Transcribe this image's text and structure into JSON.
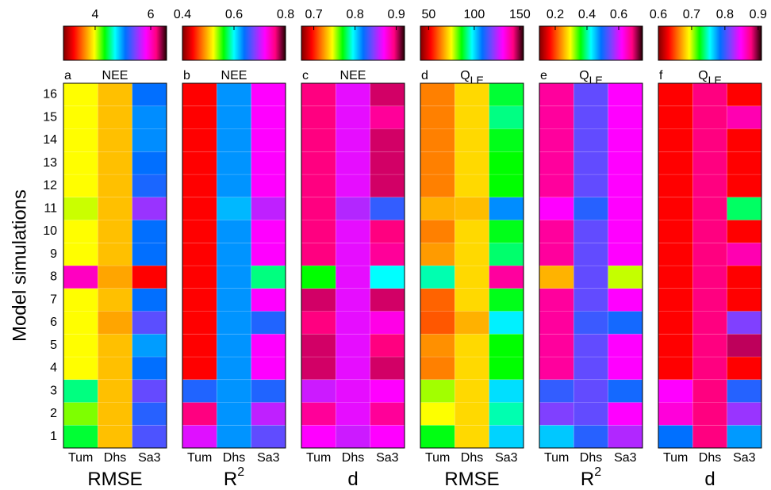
{
  "colormap": [
    "#800000",
    "#ff0000",
    "#ff8000",
    "#ffff00",
    "#00ff00",
    "#00ffff",
    "#0070ff",
    "#8040ff",
    "#ff00ff",
    "#ff0080",
    "#200000"
  ],
  "chart_data": [
    {
      "type": "heatmap",
      "panel_label": "a",
      "title": "NEE",
      "x_label": "RMSE",
      "y_label": "Model simulations",
      "columns": [
        "Tum",
        "Dhs",
        "Sa3"
      ],
      "rows": [
        1,
        2,
        3,
        4,
        5,
        6,
        7,
        8,
        9,
        10,
        11,
        12,
        13,
        14,
        15,
        16
      ],
      "clim": [
        2.86,
        6.57
      ],
      "cticks": [
        4,
        6
      ],
      "values": [
        [
          4.42,
          3.79,
          5.31
        ],
        [
          4.16,
          3.79,
          5.2
        ],
        [
          4.53,
          3.79,
          5.38
        ],
        [
          3.97,
          3.79,
          5.09
        ],
        [
          3.97,
          3.79,
          4.97
        ],
        [
          3.97,
          3.71,
          5.35
        ],
        [
          3.97,
          3.79,
          5.09
        ],
        [
          6.01,
          3.71,
          3.23
        ],
        [
          3.97,
          3.79,
          5.09
        ],
        [
          3.97,
          3.79,
          5.09
        ],
        [
          4.05,
          3.79,
          5.53
        ],
        [
          3.97,
          3.79,
          5.16
        ],
        [
          3.97,
          3.79,
          5.09
        ],
        [
          3.97,
          3.79,
          5.01
        ],
        [
          3.97,
          3.79,
          5.01
        ],
        [
          3.97,
          3.79,
          5.09
        ]
      ]
    },
    {
      "type": "heatmap",
      "panel_label": "b",
      "title": "NEE",
      "x_label": "R",
      "x_label_sup": "2",
      "columns": [
        "Tum",
        "Dhs",
        "Sa3"
      ],
      "clim": [
        0.4,
        0.8
      ],
      "cticks": [
        0.4,
        0.6,
        0.8
      ],
      "values": [
        [
          0.71,
          0.63,
          0.67
        ],
        [
          0.76,
          0.63,
          0.7
        ],
        [
          0.65,
          0.63,
          0.65
        ],
        [
          0.44,
          0.63,
          0.72
        ],
        [
          0.44,
          0.63,
          0.72
        ],
        [
          0.44,
          0.63,
          0.65
        ],
        [
          0.44,
          0.63,
          0.72
        ],
        [
          0.44,
          0.63,
          0.58
        ],
        [
          0.44,
          0.63,
          0.72
        ],
        [
          0.44,
          0.63,
          0.72
        ],
        [
          0.44,
          0.62,
          0.7
        ],
        [
          0.44,
          0.63,
          0.72
        ],
        [
          0.44,
          0.63,
          0.72
        ],
        [
          0.44,
          0.63,
          0.72
        ],
        [
          0.44,
          0.63,
          0.72
        ],
        [
          0.44,
          0.63,
          0.72
        ]
      ]
    },
    {
      "type": "heatmap",
      "panel_label": "c",
      "title": "NEE",
      "x_label": "d",
      "columns": [
        "Tum",
        "Dhs",
        "Sa3"
      ],
      "clim": [
        0.67,
        0.92
      ],
      "cticks": [
        0.7,
        0.8,
        0.9
      ],
      "values": [
        [
          0.87,
          0.86,
          0.87
        ],
        [
          0.89,
          0.865,
          0.89
        ],
        [
          0.86,
          0.865,
          0.87
        ],
        [
          0.9,
          0.865,
          0.9
        ],
        [
          0.9,
          0.865,
          0.895
        ],
        [
          0.895,
          0.865,
          0.875
        ],
        [
          0.9,
          0.865,
          0.9
        ],
        [
          0.77,
          0.865,
          0.795
        ],
        [
          0.895,
          0.865,
          0.89
        ],
        [
          0.895,
          0.865,
          0.895
        ],
        [
          0.895,
          0.855,
          0.83
        ],
        [
          0.895,
          0.865,
          0.9
        ],
        [
          0.895,
          0.865,
          0.9
        ],
        [
          0.895,
          0.865,
          0.9
        ],
        [
          0.895,
          0.865,
          0.89
        ],
        [
          0.895,
          0.865,
          0.9
        ]
      ]
    },
    {
      "type": "heatmap",
      "panel_label": "d",
      "title": "Q",
      "title_sub": "LE",
      "x_label": "RMSE",
      "columns": [
        "Tum",
        "Dhs",
        "Sa3"
      ],
      "clim": [
        41,
        154
      ],
      "cticks": [
        50,
        100,
        150
      ],
      "values": [
        [
          87,
          71.5,
          101
        ],
        [
          75,
          71.5,
          94
        ],
        [
          79,
          71.5,
          100
        ],
        [
          63.6,
          71.5,
          86.2
        ],
        [
          65,
          71.5,
          86.2
        ],
        [
          60,
          68,
          98.6
        ],
        [
          61,
          71.5,
          87.3
        ],
        [
          94,
          71.5,
          140
        ],
        [
          66,
          71.5,
          91
        ],
        [
          63.6,
          71.5,
          87.3
        ],
        [
          68,
          69,
          106.5
        ],
        [
          63.6,
          71.5,
          86.2
        ],
        [
          63.6,
          71.5,
          86.2
        ],
        [
          63.6,
          71.5,
          87.3
        ],
        [
          63.6,
          71.5,
          92
        ],
        [
          63.6,
          71.5,
          88.5
        ]
      ]
    },
    {
      "type": "heatmap",
      "panel_label": "e",
      "title": "Q",
      "title_sub": "LE",
      "x_label": "R",
      "x_label_sup": "2",
      "columns": [
        "Tum",
        "Dhs",
        "Sa3"
      ],
      "clim": [
        0.1,
        0.75
      ],
      "cticks": [
        0.2,
        0.4,
        0.6
      ],
      "values": [
        [
          0.45,
          0.51,
          0.58
        ],
        [
          0.555,
          0.54,
          0.62
        ],
        [
          0.516,
          0.54,
          0.5
        ],
        [
          0.67,
          0.54,
          0.62
        ],
        [
          0.67,
          0.54,
          0.62
        ],
        [
          0.67,
          0.52,
          0.5
        ],
        [
          0.67,
          0.54,
          0.62
        ],
        [
          0.256,
          0.54,
          0.31
        ],
        [
          0.67,
          0.54,
          0.62
        ],
        [
          0.67,
          0.54,
          0.62
        ],
        [
          0.62,
          0.51,
          0.62
        ],
        [
          0.67,
          0.54,
          0.62
        ],
        [
          0.67,
          0.54,
          0.62
        ],
        [
          0.67,
          0.54,
          0.62
        ],
        [
          0.67,
          0.54,
          0.62
        ],
        [
          0.67,
          0.54,
          0.62
        ]
      ]
    },
    {
      "type": "heatmap",
      "panel_label": "f",
      "title": "Q",
      "title_sub": "LE",
      "x_label": "d",
      "columns": [
        "Tum",
        "Dhs",
        "Sa3"
      ],
      "clim": [
        0.6,
        0.91
      ],
      "cticks": [
        0.6,
        0.7,
        0.8,
        0.9
      ],
      "values": [
        [
          0.786,
          0.879,
          0.777
        ],
        [
          0.857,
          0.879,
          0.823
        ],
        [
          0.848,
          0.879,
          0.795
        ],
        [
          0.631,
          0.879,
          0.631
        ],
        [
          0.631,
          0.879,
          0.888
        ],
        [
          0.631,
          0.879,
          0.817
        ],
        [
          0.631,
          0.879,
          0.631
        ],
        [
          0.631,
          0.879,
          0.631
        ],
        [
          0.631,
          0.879,
          0.867
        ],
        [
          0.631,
          0.879,
          0.631
        ],
        [
          0.631,
          0.879,
          0.736
        ],
        [
          0.631,
          0.879,
          0.631
        ],
        [
          0.631,
          0.879,
          0.631
        ],
        [
          0.631,
          0.879,
          0.631
        ],
        [
          0.631,
          0.879,
          0.867
        ],
        [
          0.631,
          0.879,
          0.631
        ]
      ]
    }
  ]
}
